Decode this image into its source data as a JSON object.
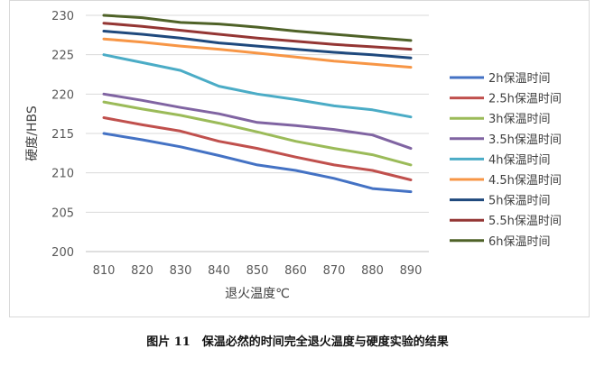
{
  "chart_data": {
    "type": "line",
    "title": "",
    "xlabel": "退火温度℃",
    "ylabel": "硬度/HBS",
    "x": [
      810,
      820,
      830,
      840,
      850,
      860,
      870,
      880,
      890
    ],
    "ylim": [
      200,
      230
    ],
    "yticks": [
      200,
      205,
      210,
      215,
      220,
      225,
      230
    ],
    "grid": "horizontal",
    "legend_position": "right",
    "series": [
      {
        "name": "2h保温时间",
        "color": "#4472c4",
        "values": [
          215.0,
          214.2,
          213.3,
          212.2,
          211.0,
          210.3,
          209.3,
          208.0,
          207.6
        ]
      },
      {
        "name": "2.5h保温时间",
        "color": "#c0504d",
        "values": [
          217.0,
          216.1,
          215.3,
          214.0,
          213.1,
          212.0,
          211.0,
          210.3,
          209.1
        ]
      },
      {
        "name": "3h保温时间",
        "color": "#9bbb59",
        "values": [
          219.0,
          218.1,
          217.3,
          216.3,
          215.2,
          214.0,
          213.1,
          212.3,
          211.0
        ]
      },
      {
        "name": "3.5h保温时间",
        "color": "#8064a2",
        "values": [
          220.0,
          219.2,
          218.3,
          217.5,
          216.4,
          216.0,
          215.5,
          214.8,
          213.1
        ]
      },
      {
        "name": "4h保温时间",
        "color": "#4bacc6",
        "values": [
          225.0,
          224.0,
          223.0,
          221.0,
          220.0,
          219.3,
          218.5,
          218.0,
          217.1
        ]
      },
      {
        "name": "4.5h保温时间",
        "color": "#f79646",
        "values": [
          227.0,
          226.6,
          226.1,
          225.7,
          225.2,
          224.7,
          224.2,
          223.8,
          223.4
        ]
      },
      {
        "name": "5h保温时间",
        "color": "#1f497d",
        "values": [
          228.0,
          227.6,
          227.1,
          226.5,
          226.1,
          225.7,
          225.3,
          225.0,
          224.6
        ]
      },
      {
        "name": "5.5h保温时间",
        "color": "#943634",
        "values": [
          229.0,
          228.6,
          228.1,
          227.6,
          227.1,
          226.7,
          226.3,
          226.0,
          225.7
        ]
      },
      {
        "name": "6h保温时间",
        "color": "#4f6228",
        "values": [
          230.0,
          229.7,
          229.1,
          228.9,
          228.5,
          228.0,
          227.6,
          227.2,
          226.8
        ]
      }
    ]
  },
  "caption": "图片 11　保温必然的时间完全退火温度与硬度实验的结果"
}
